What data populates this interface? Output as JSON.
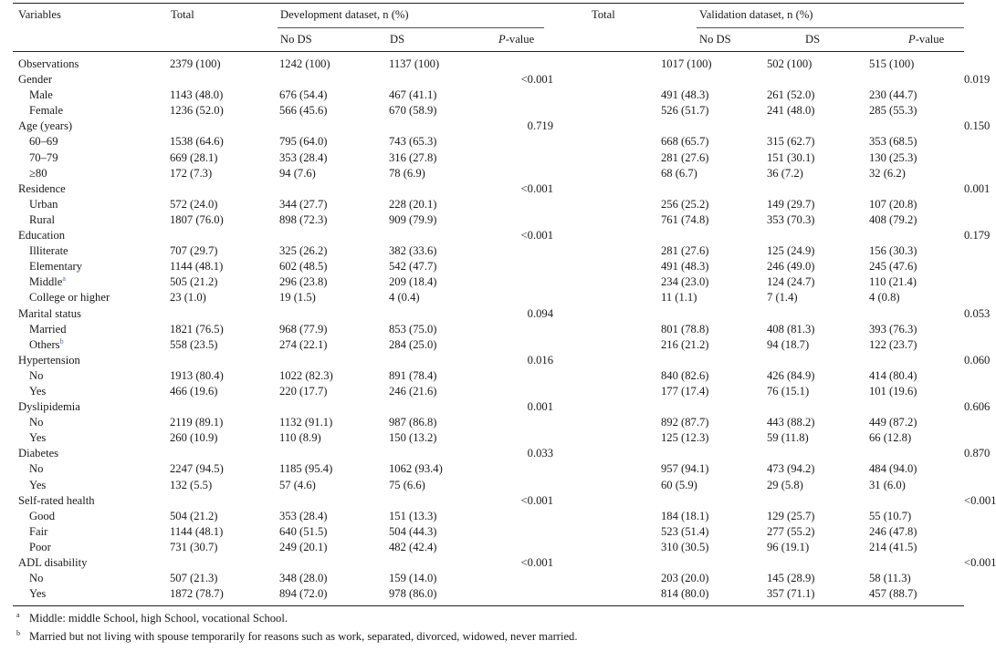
{
  "header": {
    "variables": "Variables",
    "total": "Total",
    "development": "Development dataset, n (%)",
    "validation": "Validation dataset, n (%)",
    "no_ds": "No DS",
    "ds": "DS",
    "p_italic": "P",
    "p_rest": "-value"
  },
  "rows": [
    {
      "label": "Observations",
      "sub": false,
      "c": [
        "2379 (100)",
        "1242 (100)",
        "1137 (100)",
        "",
        "1017 (100)",
        "502 (100)",
        "515 (100)",
        ""
      ]
    },
    {
      "label": "Gender",
      "sub": false,
      "c": [
        "",
        "",
        "",
        "<0.001",
        "",
        "",
        "",
        "0.019"
      ]
    },
    {
      "label": "Male",
      "sub": true,
      "c": [
        "1143 (48.0)",
        "676 (54.4)",
        "467 (41.1)",
        "",
        "491 (48.3)",
        "261 (52.0)",
        "230 (44.7)",
        ""
      ]
    },
    {
      "label": "Female",
      "sub": true,
      "c": [
        "1236 (52.0)",
        "566 (45.6)",
        "670 (58.9)",
        "",
        "526 (51.7)",
        "241 (48.0)",
        "285 (55.3)",
        ""
      ]
    },
    {
      "label": "Age (years)",
      "sub": false,
      "c": [
        "",
        "",
        "",
        "0.719",
        "",
        "",
        "",
        "0.150"
      ]
    },
    {
      "label": "60–69",
      "sub": true,
      "c": [
        "1538 (64.6)",
        "795 (64.0)",
        "743 (65.3)",
        "",
        "668 (65.7)",
        "315 (62.7)",
        "353 (68.5)",
        ""
      ]
    },
    {
      "label": "70–79",
      "sub": true,
      "c": [
        "669 (28.1)",
        "353 (28.4)",
        "316 (27.8)",
        "",
        "281 (27.6)",
        "151 (30.1)",
        "130 (25.3)",
        ""
      ]
    },
    {
      "label": "≥80",
      "sub": true,
      "c": [
        "172 (7.3)",
        "94 (7.6)",
        "78 (6.9)",
        "",
        "68 (6.7)",
        "36 (7.2)",
        "32 (6.2)",
        ""
      ]
    },
    {
      "label": "Residence",
      "sub": false,
      "c": [
        "",
        "",
        "",
        "<0.001",
        "",
        "",
        "",
        "0.001"
      ]
    },
    {
      "label": "Urban",
      "sub": true,
      "c": [
        "572 (24.0)",
        "344 (27.7)",
        "228 (20.1)",
        "",
        "256 (25.2)",
        "149 (29.7)",
        "107 (20.8)",
        ""
      ]
    },
    {
      "label": "Rural",
      "sub": true,
      "c": [
        "1807 (76.0)",
        "898 (72.3)",
        "909 (79.9)",
        "",
        "761 (74.8)",
        "353 (70.3)",
        "408 (79.2)",
        ""
      ]
    },
    {
      "label": "Education",
      "sub": false,
      "c": [
        "",
        "",
        "",
        "<0.001",
        "",
        "",
        "",
        "0.179"
      ]
    },
    {
      "label": "Illiterate",
      "sub": true,
      "c": [
        "707 (29.7)",
        "325 (26.2)",
        "382 (33.6)",
        "",
        "281 (27.6)",
        "125 (24.9)",
        "156 (30.3)",
        ""
      ]
    },
    {
      "label": "Elementary",
      "sub": true,
      "c": [
        "1144 (48.1)",
        "602 (48.5)",
        "542 (47.7)",
        "",
        "491 (48.3)",
        "246 (49.0)",
        "245 (47.6)",
        ""
      ]
    },
    {
      "label": "Middle",
      "sup": "a",
      "sub": true,
      "c": [
        "505 (21.2)",
        "296 (23.8)",
        "209 (18.4)",
        "",
        "234 (23.0)",
        "124 (24.7)",
        "110 (21.4)",
        ""
      ]
    },
    {
      "label": "College or higher",
      "sub": true,
      "c": [
        "23 (1.0)",
        "19 (1.5)",
        "4 (0.4)",
        "",
        "11 (1.1)",
        "7 (1.4)",
        "4 (0.8)",
        ""
      ]
    },
    {
      "label": "Marital status",
      "sub": false,
      "c": [
        "",
        "",
        "",
        "0.094",
        "",
        "",
        "",
        "0.053"
      ]
    },
    {
      "label": "Married",
      "sub": true,
      "c": [
        "1821 (76.5)",
        "968 (77.9)",
        "853 (75.0)",
        "",
        "801 (78.8)",
        "408 (81.3)",
        "393 (76.3)",
        ""
      ]
    },
    {
      "label": "Others",
      "sup": "b",
      "sub": true,
      "c": [
        "558 (23.5)",
        "274 (22.1)",
        "284 (25.0)",
        "",
        "216 (21.2)",
        "94 (18.7)",
        "122 (23.7)",
        ""
      ]
    },
    {
      "label": "Hypertension",
      "sub": false,
      "c": [
        "",
        "",
        "",
        "0.016",
        "",
        "",
        "",
        "0.060"
      ]
    },
    {
      "label": "No",
      "sub": true,
      "c": [
        "1913 (80.4)",
        "1022 (82.3)",
        "891 (78.4)",
        "",
        "840 (82.6)",
        "426 (84.9)",
        "414 (80.4)",
        ""
      ]
    },
    {
      "label": "Yes",
      "sub": true,
      "c": [
        "466 (19.6)",
        "220 (17.7)",
        "246 (21.6)",
        "",
        "177 (17.4)",
        "76 (15.1)",
        "101 (19.6)",
        ""
      ]
    },
    {
      "label": "Dyslipidemia",
      "sub": false,
      "c": [
        "",
        "",
        "",
        "0.001",
        "",
        "",
        "",
        "0.606"
      ]
    },
    {
      "label": "No",
      "sub": true,
      "c": [
        "2119 (89.1)",
        "1132 (91.1)",
        "987 (86.8)",
        "",
        "892 (87.7)",
        "443 (88.2)",
        "449 (87.2)",
        ""
      ]
    },
    {
      "label": "Yes",
      "sub": true,
      "c": [
        "260 (10.9)",
        "110 (8.9)",
        "150 (13.2)",
        "",
        "125 (12.3)",
        "59 (11.8)",
        "66 (12.8)",
        ""
      ]
    },
    {
      "label": "Diabetes",
      "sub": false,
      "c": [
        "",
        "",
        "",
        "0.033",
        "",
        "",
        "",
        "0.870"
      ]
    },
    {
      "label": "No",
      "sub": true,
      "c": [
        "2247 (94.5)",
        "1185 (95.4)",
        "1062 (93.4)",
        "",
        "957 (94.1)",
        "473 (94.2)",
        "484 (94.0)",
        ""
      ]
    },
    {
      "label": "Yes",
      "sub": true,
      "c": [
        "132 (5.5)",
        "57 (4.6)",
        "75 (6.6)",
        "",
        "60 (5.9)",
        "29 (5.8)",
        "31 (6.0)",
        ""
      ]
    },
    {
      "label": "Self-rated health",
      "sub": false,
      "c": [
        "",
        "",
        "",
        "<0.001",
        "",
        "",
        "",
        "<0.001"
      ]
    },
    {
      "label": "Good",
      "sub": true,
      "c": [
        "504 (21.2)",
        "353 (28.4)",
        "151 (13.3)",
        "",
        "184 (18.1)",
        "129 (25.7)",
        "55 (10.7)",
        ""
      ]
    },
    {
      "label": "Fair",
      "sub": true,
      "c": [
        "1144 (48.1)",
        "640 (51.5)",
        "504 (44.3)",
        "",
        "523 (51.4)",
        "277 (55.2)",
        "246 (47.8)",
        ""
      ]
    },
    {
      "label": "Poor",
      "sub": true,
      "c": [
        "731 (30.7)",
        "249 (20.1)",
        "482 (42.4)",
        "",
        "310 (30.5)",
        "96 (19.1)",
        "214 (41.5)",
        ""
      ]
    },
    {
      "label": "ADL disability",
      "sub": false,
      "c": [
        "",
        "",
        "",
        "<0.001",
        "",
        "",
        "",
        "<0.001"
      ]
    },
    {
      "label": "No",
      "sub": true,
      "c": [
        "507 (21.3)",
        "348 (28.0)",
        "159 (14.0)",
        "",
        "203 (20.0)",
        "145 (28.9)",
        "58 (11.3)",
        ""
      ]
    },
    {
      "label": "Yes",
      "sub": true,
      "c": [
        "1872 (78.7)",
        "894 (72.0)",
        "978 (86.0)",
        "",
        "814 (80.0)",
        "357 (71.1)",
        "457 (88.7)",
        ""
      ]
    }
  ],
  "footnotes": [
    {
      "mark": "a",
      "text": "Middle: middle School, high School, vocational School."
    },
    {
      "mark": "b",
      "text": "Married but not living with spouse temporarily for reasons such as work, separated, divorced, widowed, never married."
    }
  ]
}
